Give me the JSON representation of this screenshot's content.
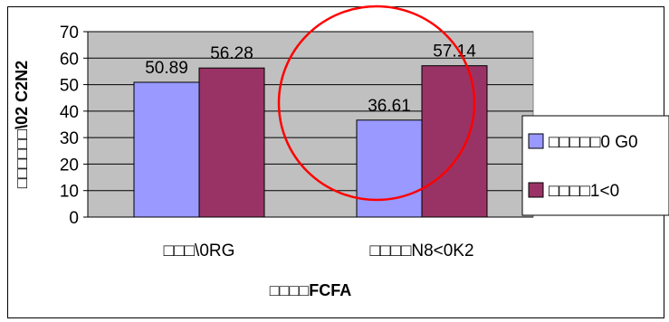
{
  "chart_data": {
    "type": "bar",
    "title": "",
    "categories": [
      "□□□\\0RG",
      "□□□□N8<0K2"
    ],
    "series": [
      {
        "name": "□□□□□0 G0",
        "color": "#9999ff",
        "values": [
          50.89,
          36.61
        ]
      },
      {
        "name": "□□□□1<0",
        "color": "#993366",
        "values": [
          56.28,
          57.14
        ]
      }
    ],
    "data_labels": [
      [
        "50.89",
        "36.61"
      ],
      [
        "56.28",
        "57.14"
      ]
    ],
    "ylim": [
      0,
      70
    ],
    "yticks": [
      0,
      10,
      20,
      30,
      40,
      50,
      60,
      70
    ],
    "ytick_labels": [
      "0",
      "10",
      "20",
      "30",
      "40",
      "50",
      "60",
      "70"
    ],
    "xlabel": "□□□□FCFA",
    "ylabel": "□□□□□□\\02 C2N2",
    "plot_background": "#c0c0c0",
    "grid": true,
    "legend_position": "right",
    "annotation": {
      "shape": "circle",
      "color": "#ff0000"
    }
  }
}
